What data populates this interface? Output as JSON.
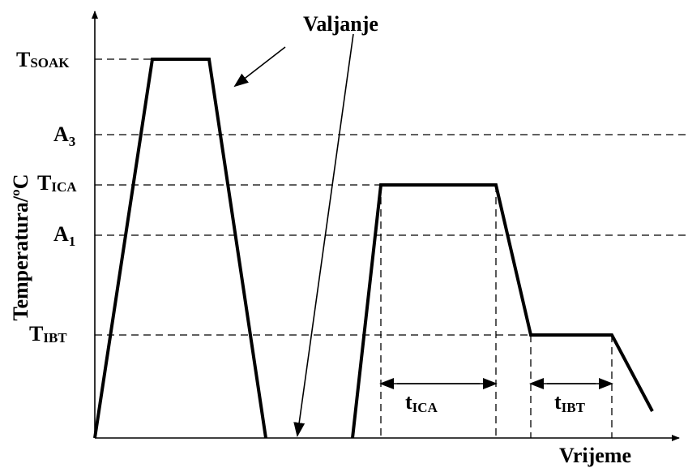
{
  "title": "Valjanje",
  "y_axis_label": "Temperatura/ºC",
  "x_axis_label": "Vrijeme",
  "levels": [
    {
      "main": "T",
      "sub": "SOAK"
    },
    {
      "main": "A",
      "sub": "3"
    },
    {
      "main": "T",
      "sub": "ICA"
    },
    {
      "main": "A",
      "sub": "1"
    },
    {
      "main": "T",
      "sub": "IBT"
    }
  ],
  "durations": [
    {
      "main": "t",
      "sub": "ICA"
    },
    {
      "main": "t",
      "sub": "IBT"
    }
  ]
}
